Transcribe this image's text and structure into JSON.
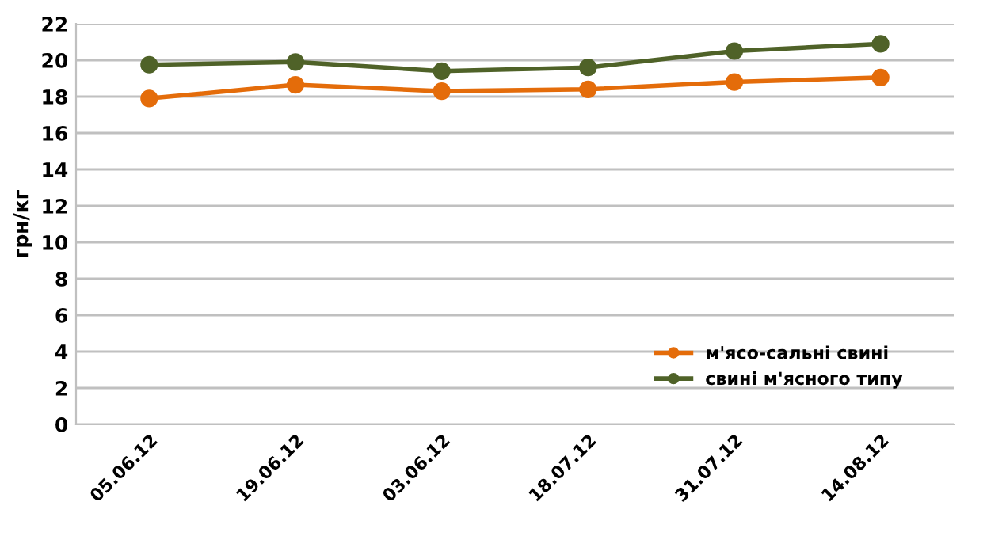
{
  "chart_data": {
    "type": "line",
    "ylabel": "грн/кг",
    "categories": [
      "05.06.12",
      "19.06.12",
      "03.06.12",
      "18.07.12",
      "31.07.12",
      "14.08.12"
    ],
    "series": [
      {
        "name": "м'ясо-сальні свині",
        "color": "#e46c0a",
        "values": [
          17.9,
          18.65,
          18.3,
          18.4,
          18.8,
          19.05
        ]
      },
      {
        "name": "свині м'ясного типу",
        "color": "#4f6228",
        "values": [
          19.75,
          19.9,
          19.4,
          19.6,
          20.5,
          20.9
        ]
      }
    ],
    "ylim": [
      0,
      22
    ],
    "yticks": [
      0,
      2,
      4,
      6,
      8,
      10,
      12,
      14,
      16,
      18,
      20,
      22
    ],
    "grid": "y",
    "legend": "bottom right",
    "marker": "circle",
    "line_style": "solid"
  }
}
